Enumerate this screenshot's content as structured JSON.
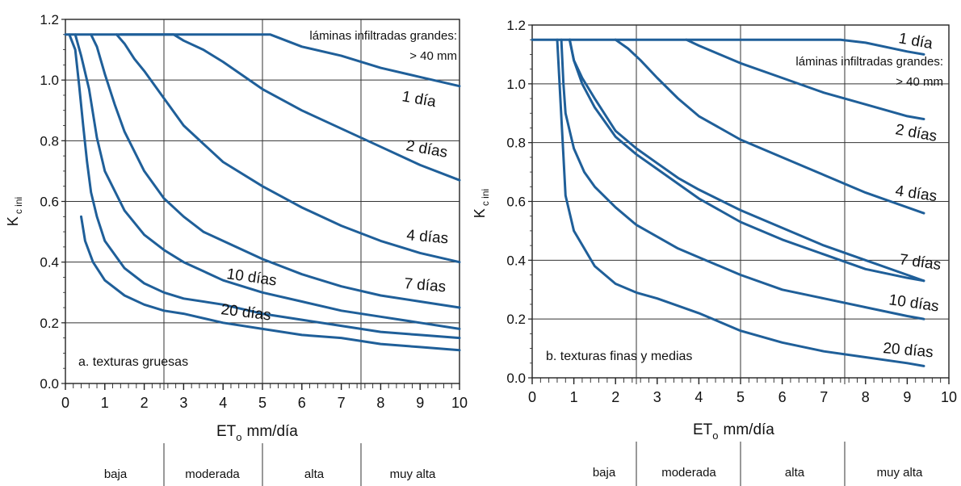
{
  "chart_data": [
    {
      "type": "line",
      "panel_label": "a. texturas gruesas",
      "xlabel_main": "ET",
      "xlabel_sub": "o",
      "xlabel_unit": "mm/día",
      "ylabel_main": "K",
      "ylabel_sub": "c ini",
      "xlim": [
        0,
        10
      ],
      "ylim": [
        0,
        1.2
      ],
      "xticks": [
        "0",
        "1",
        "2",
        "3",
        "4",
        "5",
        "6",
        "7",
        "8",
        "9",
        "10"
      ],
      "yticks": [
        "0.0",
        "0.2",
        "0.4",
        "0.6",
        "0.8",
        "1.0",
        "1.2"
      ],
      "grid": true,
      "annotation_line1": "láminas infiltradas grandes:",
      "annotation_line2": "> 40 mm",
      "band_boundaries": [
        2.5,
        5,
        7.5
      ],
      "bands": [
        "baja",
        "moderada",
        "alta",
        "muy alta"
      ],
      "series": [
        {
          "name": "> 40 mm",
          "x": [
            0,
            1,
            2,
            3,
            4,
            5,
            5.2,
            6,
            7,
            8,
            9,
            10
          ],
          "y": [
            1.15,
            1.15,
            1.15,
            1.15,
            1.15,
            1.15,
            1.15,
            1.11,
            1.08,
            1.04,
            1.01,
            0.98
          ]
        },
        {
          "name": "1 día",
          "x": [
            1.4,
            2,
            2.75,
            3,
            3.5,
            4,
            5,
            6,
            7,
            8,
            9,
            10
          ],
          "y": [
            1.15,
            1.15,
            1.15,
            1.13,
            1.1,
            1.06,
            0.97,
            0.9,
            0.84,
            0.78,
            0.72,
            0.67
          ]
        },
        {
          "name": "2 días",
          "x": [
            1.3,
            1.5,
            1.75,
            2,
            2.5,
            3,
            3.5,
            4,
            5,
            6,
            7,
            8,
            9,
            10
          ],
          "y": [
            1.15,
            1.12,
            1.07,
            1.03,
            0.94,
            0.85,
            0.79,
            0.73,
            0.65,
            0.58,
            0.52,
            0.47,
            0.43,
            0.4
          ]
        },
        {
          "name": "4 días",
          "x": [
            0.65,
            0.8,
            1,
            1.25,
            1.5,
            2,
            2.5,
            3,
            3.5,
            4,
            5,
            6,
            7,
            8,
            9,
            10
          ],
          "y": [
            1.15,
            1.11,
            1.02,
            0.92,
            0.83,
            0.7,
            0.61,
            0.55,
            0.5,
            0.47,
            0.41,
            0.36,
            0.32,
            0.29,
            0.27,
            0.25
          ]
        },
        {
          "name": "7 días",
          "x": [
            0.25,
            0.4,
            0.6,
            0.8,
            1,
            1.5,
            2,
            2.5,
            3,
            3.5,
            4,
            5,
            6,
            7,
            8,
            9,
            10
          ],
          "y": [
            1.15,
            1.08,
            0.97,
            0.81,
            0.7,
            0.57,
            0.49,
            0.44,
            0.4,
            0.37,
            0.34,
            0.3,
            0.27,
            0.24,
            0.22,
            0.2,
            0.18
          ]
        },
        {
          "name": "10 días",
          "x": [
            0.1,
            0.25,
            0.35,
            0.45,
            0.55,
            0.65,
            0.8,
            1,
            1.5,
            2,
            2.5,
            3,
            4,
            5,
            6,
            7,
            8,
            9,
            10
          ],
          "y": [
            1.15,
            1.1,
            0.98,
            0.85,
            0.73,
            0.63,
            0.55,
            0.47,
            0.38,
            0.33,
            0.3,
            0.28,
            0.26,
            0.23,
            0.21,
            0.19,
            0.17,
            0.16,
            0.15
          ]
        },
        {
          "name": "20 días",
          "x": [
            0.4,
            0.5,
            0.7,
            1,
            1.5,
            2,
            2.5,
            3,
            4,
            5,
            6,
            7,
            8,
            9,
            10
          ],
          "y": [
            0.55,
            0.47,
            0.4,
            0.34,
            0.29,
            0.26,
            0.24,
            0.23,
            0.2,
            0.18,
            0.16,
            0.15,
            0.13,
            0.12,
            0.11
          ]
        }
      ],
      "curve_labels": [
        "1 día",
        "2 días",
        "4 días",
        "7 días",
        "10 días",
        "20 días"
      ]
    },
    {
      "type": "line",
      "panel_label": "b. texturas finas y medias",
      "xlabel_main": "ET",
      "xlabel_sub": "o",
      "xlabel_unit": "mm/día",
      "ylabel_main": "K",
      "ylabel_sub": "c ini",
      "xlim": [
        0,
        10
      ],
      "ylim": [
        0,
        1.2
      ],
      "xticks": [
        "0",
        "1",
        "2",
        "3",
        "4",
        "5",
        "6",
        "7",
        "8",
        "9",
        "10"
      ],
      "yticks": [
        "0.0",
        "0.2",
        "0.4",
        "0.6",
        "0.8",
        "1.0",
        "1.2"
      ],
      "grid": true,
      "annotation_line1": "láminas infiltradas grandes:",
      "annotation_line2": "> 40 mm",
      "band_boundaries": [
        2.5,
        5,
        7.5
      ],
      "bands": [
        "baja",
        "moderada",
        "alta",
        "muy alta"
      ],
      "series": [
        {
          "name": "> 40 mm",
          "x": [
            0,
            2,
            4,
            6,
            7.4,
            8,
            9,
            9.4
          ],
          "y": [
            1.15,
            1.15,
            1.15,
            1.15,
            1.15,
            1.14,
            1.11,
            1.1
          ]
        },
        {
          "name": "1 día",
          "x": [
            3.7,
            4,
            4.5,
            5,
            6,
            7,
            8,
            9,
            9.4
          ],
          "y": [
            1.15,
            1.13,
            1.1,
            1.07,
            1.02,
            0.97,
            0.93,
            0.89,
            0.88
          ]
        },
        {
          "name": "2 días",
          "x": [
            2,
            2.3,
            2.6,
            3,
            3.5,
            4,
            5,
            6,
            7,
            8,
            9,
            9.4
          ],
          "y": [
            1.15,
            1.12,
            1.08,
            1.02,
            0.95,
            0.89,
            0.81,
            0.75,
            0.69,
            0.63,
            0.58,
            0.56
          ]
        },
        {
          "name": "4 días",
          "x": [
            0.9,
            1,
            1.2,
            1.5,
            2,
            2.5,
            3,
            3.5,
            4,
            5,
            6,
            7,
            8,
            9,
            9.4
          ],
          "y": [
            1.15,
            1.08,
            1.02,
            0.95,
            0.84,
            0.78,
            0.73,
            0.68,
            0.64,
            0.57,
            0.51,
            0.45,
            0.4,
            0.35,
            0.33
          ]
        },
        {
          "name": "7 días",
          "x": [
            0.8,
            0.85,
            0.9,
            1,
            1.2,
            1.5,
            2,
            2.5,
            3,
            3.5,
            4,
            5,
            6,
            7,
            8,
            9,
            9.4
          ],
          "y": [
            1.15,
            1.05,
            0.98,
            0.91,
            0.84,
            0.76,
            0.66,
            0.59,
            0.54,
            0.5,
            0.46,
            0.4,
            0.35,
            0.31,
            0.26,
            0.21,
            0.2
          ]
        },
        {
          "name": "10 días",
          "x": [
            0.6,
            0.65,
            0.7,
            0.8,
            1,
            1.25,
            1.5,
            2,
            2.5,
            3,
            4,
            5,
            6,
            7,
            8,
            9,
            9.4
          ],
          "y": [
            1.15,
            0.95,
            0.8,
            0.65,
            0.52,
            0.43,
            0.38,
            0.33,
            0.3,
            0.28,
            0.22,
            0.16,
            0.12,
            0.09,
            0.07,
            0.05,
            0.04
          ]
        },
        {
          "name": "20 días",
          "x": [
            0.6,
            0.8,
            1,
            1.5,
            2,
            2.5,
            3,
            4,
            5,
            6,
            7,
            8,
            9,
            9.4
          ],
          "y": [
            1.15,
            1.15,
            1.15,
            1.15,
            1.15,
            1.15,
            1.15,
            1.15,
            1.15,
            1.15,
            1.15,
            1.15,
            1.15,
            1.15
          ]
        }
      ],
      "curve_labels": [
        "1 día",
        "2 días",
        "4 días",
        "7 días",
        "10 días",
        "20 días"
      ]
    }
  ]
}
